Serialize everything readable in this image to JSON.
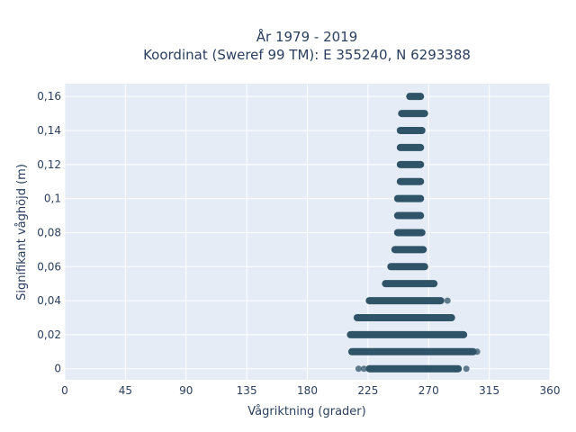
{
  "chart_data": {
    "type": "scatter",
    "title_line1": "År 1979 - 2019",
    "title_line2": "Koordinat (Sweref 99 TM): E 355240, N 6293388",
    "xlabel": "Vågriktning (grader)",
    "ylabel": "Signifikant våghöjd (m)",
    "xlim": [
      0,
      360
    ],
    "ylim": [
      -0.0065,
      0.1675
    ],
    "x_ticks": [
      0,
      45,
      90,
      135,
      180,
      225,
      270,
      315,
      360
    ],
    "x_tick_labels": [
      "0",
      "45",
      "90",
      "135",
      "180",
      "225",
      "270",
      "315",
      "360"
    ],
    "y_ticks": [
      0,
      0.02,
      0.04,
      0.06,
      0.08,
      0.1,
      0.12,
      0.14,
      0.16
    ],
    "y_tick_labels": [
      "0",
      "0,02",
      "0,04",
      "0,06",
      "0,08",
      "0,1",
      "0,12",
      "0,14",
      "0,16"
    ],
    "grid": true,
    "plot_bgcolor": "#e5ecf6",
    "marker_color": "#2f5468",
    "bands": [
      {
        "y": 0.16,
        "x_min": 256,
        "x_max": 264
      },
      {
        "y": 0.15,
        "x_min": 250,
        "x_max": 267
      },
      {
        "y": 0.14,
        "x_min": 249,
        "x_max": 265
      },
      {
        "y": 0.13,
        "x_min": 249,
        "x_max": 264
      },
      {
        "y": 0.12,
        "x_min": 249,
        "x_max": 264
      },
      {
        "y": 0.11,
        "x_min": 249,
        "x_max": 264
      },
      {
        "y": 0.1,
        "x_min": 247,
        "x_max": 264
      },
      {
        "y": 0.09,
        "x_min": 247,
        "x_max": 264
      },
      {
        "y": 0.08,
        "x_min": 247,
        "x_max": 265
      },
      {
        "y": 0.07,
        "x_min": 245,
        "x_max": 266
      },
      {
        "y": 0.06,
        "x_min": 242,
        "x_max": 267
      },
      {
        "y": 0.05,
        "x_min": 238,
        "x_max": 274
      },
      {
        "y": 0.04,
        "x_min": 226,
        "x_max": 279
      },
      {
        "y": 0.03,
        "x_min": 217,
        "x_max": 287
      },
      {
        "y": 0.02,
        "x_min": 212,
        "x_max": 296
      },
      {
        "y": 0.01,
        "x_min": 213,
        "x_max": 303
      },
      {
        "y": 0.0,
        "x_min": 226,
        "x_max": 292
      }
    ],
    "outliers": [
      {
        "x": 218,
        "y": 0
      },
      {
        "x": 222,
        "y": 0
      },
      {
        "x": 298,
        "y": 0
      },
      {
        "x": 284,
        "y": 0.04
      },
      {
        "x": 306,
        "y": 0.01
      }
    ]
  }
}
